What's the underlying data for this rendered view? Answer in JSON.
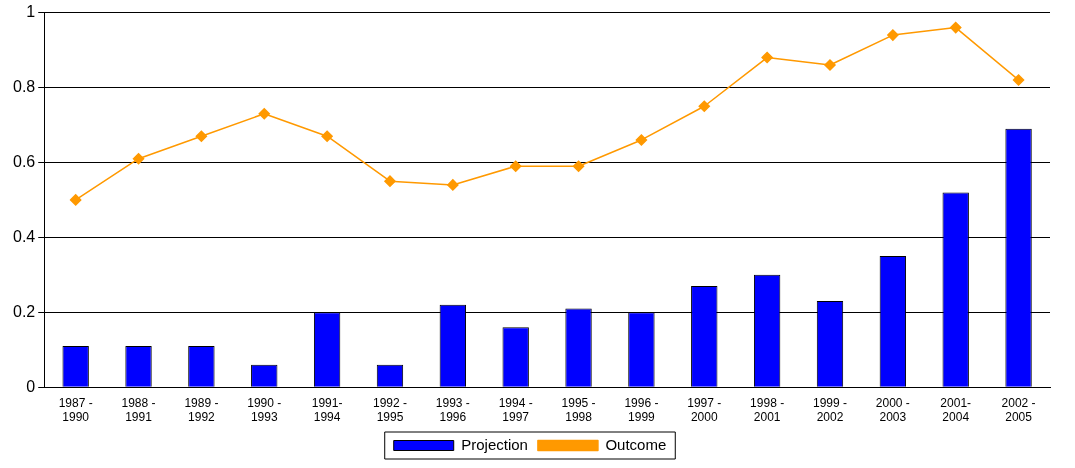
{
  "chart_data": {
    "type": "bar",
    "categories": [
      "1987 -\n1990",
      "1988 -\n1991",
      "1989 -\n1992",
      "1990 -\n1993",
      "1991-\n1994",
      "1992 -\n1995",
      "1993 -\n1996",
      "1994 -\n1997",
      "1995 -\n1998",
      "1996 -\n1999",
      "1997 -\n2000",
      "1998 -\n2001",
      "1999 -\n2002",
      "2000 -\n2003",
      "2001-\n2004",
      "2002 -\n2005"
    ],
    "series": [
      {
        "name": "Projection",
        "color": "#0000ff",
        "values": [
          0.11,
          0.11,
          0.11,
          0.06,
          0.2,
          0.06,
          0.22,
          0.16,
          0.21,
          0.2,
          0.27,
          0.3,
          0.23,
          0.35,
          0.52,
          0.69
        ]
      },
      {
        "name": "Outcome",
        "type": "line",
        "color": "#ff9900",
        "marker": "diamond",
        "values": [
          0.5,
          0.61,
          0.67,
          0.73,
          0.67,
          0.55,
          0.54,
          0.59,
          0.59,
          0.66,
          0.75,
          0.88,
          0.86,
          0.94,
          0.96,
          0.82
        ]
      }
    ],
    "ylim": [
      0,
      1
    ],
    "yticks": [
      0,
      0.2,
      0.4,
      0.6,
      0.8,
      1
    ],
    "grid": "y",
    "legend": "bottom"
  }
}
